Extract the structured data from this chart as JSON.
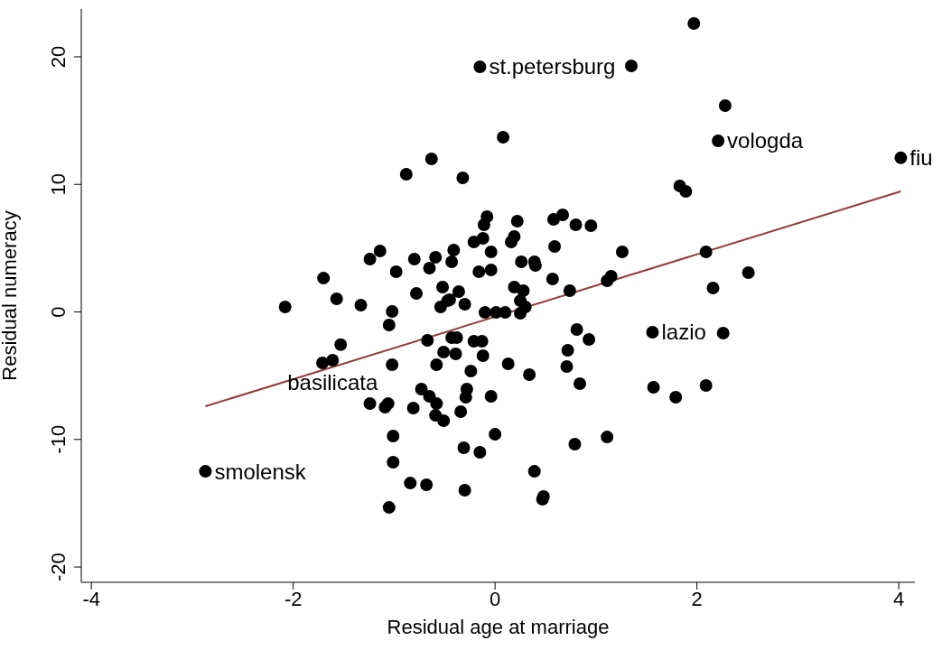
{
  "chart_data": {
    "type": "scatter",
    "xlabel": "Residual age at marriage",
    "ylabel": "Residual numeracy",
    "xlim": [
      -4.1,
      4.16
    ],
    "xticks": [
      -4,
      -2,
      0,
      2,
      4
    ],
    "ylim": [
      -21.2,
      23.75
    ],
    "yticks": [
      -20,
      -10,
      0,
      10,
      20
    ],
    "grid": false,
    "marker": "circle",
    "series": [
      {
        "color": "#000000",
        "x": [
          -2.87,
          -2.08,
          -1.7,
          -1.57,
          -1.33,
          -1.53,
          -1.61,
          -1.71,
          -1.24,
          -1.14,
          -0.98,
          -0.8,
          -0.59,
          -0.65,
          -0.78,
          -0.52,
          -0.47,
          -0.54,
          -1.02,
          -1.05,
          -0.67,
          -1.02,
          -0.58,
          -0.51,
          -0.73,
          -0.65,
          -0.58,
          -0.81,
          -1.24,
          -1.06,
          -1.09,
          -0.59,
          -0.51,
          -1.01,
          -1.01,
          -0.84,
          -0.68,
          -1.05,
          -0.63,
          -0.88,
          -0.15,
          0.08,
          -0.32,
          -0.08,
          -0.11,
          0.22,
          0.58,
          0.67,
          0.8,
          0.95,
          -0.21,
          -0.12,
          0.16,
          0.19,
          -0.04,
          0.59,
          1.26,
          -0.41,
          -0.43,
          -0.16,
          -0.04,
          0.26,
          0.39,
          0.4,
          0.57,
          0.74,
          1.11,
          1.15,
          0.19,
          0.28,
          0.25,
          0.3,
          0.25,
          -0.1,
          0.01,
          0.1,
          -0.36,
          -0.45,
          -0.3,
          -0.43,
          -0.38,
          -0.21,
          -0.13,
          -0.39,
          -0.12,
          -0.24,
          0.13,
          0.34,
          0.81,
          0.93,
          0.72,
          0.71,
          0.84,
          -0.28,
          -0.29,
          -0.04,
          -0.34,
          0.0,
          -0.31,
          -0.15,
          0.79,
          1.11,
          0.39,
          -0.3,
          0.47,
          0.48,
          1.97,
          1.35,
          2.28,
          2.21,
          4.02,
          1.83,
          1.89,
          2.09,
          2.51,
          2.16,
          1.56,
          2.26,
          1.57,
          1.79,
          2.09
        ],
        "values": [
          -12.5,
          0.39,
          2.65,
          1.03,
          0.53,
          -2.57,
          -3.79,
          -4.0,
          4.14,
          4.78,
          3.15,
          4.14,
          4.28,
          3.43,
          1.45,
          1.95,
          0.88,
          0.39,
          0.04,
          -1.03,
          -2.23,
          -4.14,
          -4.14,
          -3.15,
          -6.05,
          -6.62,
          -7.19,
          -7.54,
          -7.19,
          -7.19,
          -7.47,
          -8.11,
          -8.53,
          -9.73,
          -11.79,
          -13.42,
          -13.56,
          -15.33,
          12.0,
          10.8,
          19.22,
          13.7,
          10.51,
          7.47,
          6.83,
          7.12,
          7.26,
          7.61,
          6.83,
          6.76,
          5.49,
          5.77,
          5.49,
          5.91,
          4.71,
          5.13,
          4.71,
          4.85,
          3.93,
          3.15,
          3.29,
          3.93,
          3.93,
          3.65,
          2.58,
          1.66,
          2.44,
          2.8,
          1.95,
          1.66,
          0.88,
          0.39,
          -0.11,
          -0.04,
          -0.04,
          -0.04,
          1.59,
          0.96,
          0.6,
          -2.02,
          -2.02,
          -2.3,
          -2.3,
          -3.29,
          -3.43,
          -4.64,
          -4.07,
          -4.92,
          -1.38,
          -2.16,
          -3.01,
          -4.28,
          -5.63,
          -6.05,
          -6.69,
          -6.62,
          -7.82,
          -9.59,
          -10.65,
          -11.01,
          -10.37,
          -9.81,
          -12.5,
          -13.98,
          -14.69,
          -14.48,
          22.62,
          19.29,
          16.18,
          13.42,
          12.08,
          9.88,
          9.45,
          4.71,
          3.08,
          1.88,
          -1.59,
          -1.66,
          -5.91,
          -6.69,
          -5.77
        ]
      },
      {
        "type": "line",
        "color": "#943b3b",
        "marker": "none",
        "x": [
          -2.87,
          4.02
        ],
        "values": [
          -7.4,
          9.45
        ]
      }
    ],
    "annotations": [
      {
        "text": "smolensk",
        "x": -2.87,
        "y": -12.5
      },
      {
        "text": "basilicata",
        "x": -1.61,
        "y": -3.79
      },
      {
        "text": "st.petersburg",
        "x": -0.15,
        "y": 19.22
      },
      {
        "text": "lazio",
        "x": 1.56,
        "y": -1.59
      },
      {
        "text": "vologda",
        "x": 2.21,
        "y": 13.42
      },
      {
        "text": "fiu",
        "x": 4.02,
        "y": 12.08
      }
    ]
  }
}
